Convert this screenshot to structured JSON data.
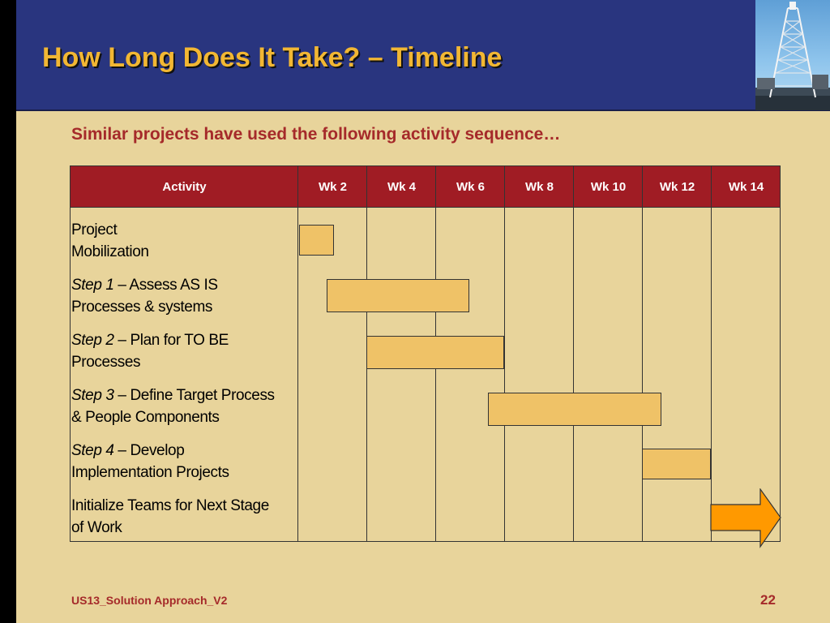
{
  "slide": {
    "title": "How Long Does It Take? – Timeline",
    "subtitle": "Similar projects have used the following activity sequence…"
  },
  "table": {
    "activity_header": "Activity",
    "week_headers": [
      "Wk 2",
      "Wk 4",
      "Wk 6",
      "Wk 8",
      "Wk 10",
      "Wk 12",
      "Wk 14"
    ],
    "rows": [
      {
        "step": "",
        "sep": "",
        "text_line1": "Project",
        "text_line2": "Mobilization"
      },
      {
        "step": "Step 1",
        "sep": " –  ",
        "text_line1": "Assess AS IS",
        "text_line2": "Processes & systems"
      },
      {
        "step": "Step 2",
        "sep": " – ",
        "text_line1": "Plan for  TO BE",
        "text_line2": "Processes"
      },
      {
        "step": "Step 3",
        "sep": " – ",
        "text_line1": "Define Target Process",
        "text_line2": "& People Components"
      },
      {
        "step": "Step 4",
        "sep": " – ",
        "text_line1": "Develop",
        "text_line2": "Implementation Projects"
      },
      {
        "step": "",
        "sep": "",
        "text_line1": "Initialize Teams for Next Stage",
        "text_line2": "of Work"
      }
    ]
  },
  "footer": {
    "doc_name": "US13_Solution Approach_V2",
    "page_number": "22"
  },
  "colors": {
    "background": "#e8d49b",
    "header_band": "#29357f",
    "title": "#f2b733",
    "accent_red": "#a52a2a",
    "table_header": "#a01c24",
    "bar_fill": "#efc267",
    "arrow_fill": "#ff9900"
  },
  "icons": {
    "photo": "drilling-rig-photo",
    "arrow": "right-arrow-icon"
  }
}
